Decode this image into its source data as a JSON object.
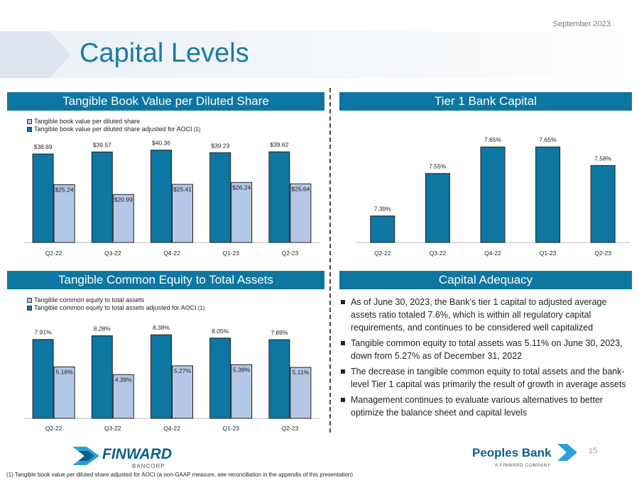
{
  "header": {
    "date": "September 2023",
    "title": "Capital Levels"
  },
  "colors": {
    "dark": "#0d76a1",
    "light": "#b4c7e7",
    "banner": "#0d76a1"
  },
  "panels": {
    "tbv": {
      "banner": "Tangible Book Value per Diluted Share"
    },
    "tier1": {
      "banner": "Tier 1 Bank Capital"
    },
    "tce": {
      "banner": "Tangible Common Equity to Total Assets"
    },
    "adequacy": {
      "banner": "Capital Adequacy"
    }
  },
  "legends": {
    "tbv": {
      "item1": "Tangible book value per diluted share",
      "item2": "Tangible book value per diluted share adjusted for AOCI",
      "note": "(1)"
    },
    "tce": {
      "item1": "Tangible common equity to total assets",
      "item2": "Tangible common equity to total assets adjusted for AOCI",
      "note": "(1)"
    }
  },
  "chart_data": [
    {
      "type": "bar",
      "title": "Tangible Book Value per Diluted Share",
      "categories": [
        "Q2-22",
        "Q3-22",
        "Q4-22",
        "Q1-23",
        "Q2-23"
      ],
      "series": [
        {
          "name": "Tangible book value per diluted share",
          "values": [
            38.69,
            39.57,
            40.36,
            39.23,
            39.62
          ],
          "labels": [
            "$38.69",
            "$39.57",
            "$40.36",
            "$39.23",
            "$39.62"
          ]
        },
        {
          "name": "Tangible book value per diluted share adjusted for AOCI",
          "values": [
            25.24,
            20.99,
            25.41,
            26.24,
            25.64
          ],
          "labels": [
            "$25.24",
            "$20.99",
            "$25.41",
            "$26.24",
            "$25.64"
          ]
        }
      ],
      "ylim": [
        0,
        44
      ]
    },
    {
      "type": "bar",
      "title": "Tier 1 Bank Capital",
      "categories": [
        "Q2-22",
        "Q3-22",
        "Q4-22",
        "Q1-23",
        "Q2-23"
      ],
      "series": [
        {
          "name": "Tier 1 Bank Capital",
          "values": [
            7.39,
            7.55,
            7.65,
            7.65,
            7.58
          ],
          "labels": [
            "7.39%",
            "7.55%",
            "7.65%",
            "7.65%",
            "7.58%"
          ]
        }
      ],
      "ylim": [
        7.29,
        7.68
      ]
    },
    {
      "type": "bar",
      "title": "Tangible Common Equity to Total Assets",
      "categories": [
        "Q2-22",
        "Q3-22",
        "Q4-22",
        "Q1-23",
        "Q2-23"
      ],
      "series": [
        {
          "name": "Tangible common equity to total assets",
          "values": [
            7.91,
            8.28,
            8.38,
            8.05,
            7.89
          ],
          "labels": [
            "7.91%",
            "8.28%",
            "8.38%",
            "8.05%",
            "7.89%"
          ]
        },
        {
          "name": "Tangible common equity to total assets adjusted for AOCI",
          "values": [
            5.16,
            4.39,
            5.27,
            5.38,
            5.11
          ],
          "labels": [
            "5.16%",
            "4.39%",
            "5.27%",
            "5.38%",
            "5.11%"
          ]
        }
      ],
      "ylim": [
        0,
        9.1
      ]
    }
  ],
  "adequacy": {
    "bullets": [
      "As of June 30, 2023, the Bank’s tier 1 capital to adjusted average assets ratio totaled 7.6%, which is within all regulatory capital requirements, and continues to be considered well capitalized",
      "Tangible common equity to total assets was 5.11% on June 30, 2023, down from 5.27% as of December 31, 2022",
      "The decrease in tangible common equity to total assets and the bank-level Tier 1 capital was primarily the result of growth in average assets",
      "Management continues to evaluate various alternatives to better optimize the balance sheet and capital levels"
    ]
  },
  "footer": {
    "finward": {
      "name": "FINWARD",
      "sub": "BANCORP"
    },
    "peoples": {
      "name": "Peoples Bank",
      "sub": "A FINWARD COMPANY"
    },
    "page": "15",
    "footnote": "(1) Tangible book value per diluted share adjusted for AOCI (a non-GAAP measure, see reconciliation in the appendix of this presentation)"
  }
}
